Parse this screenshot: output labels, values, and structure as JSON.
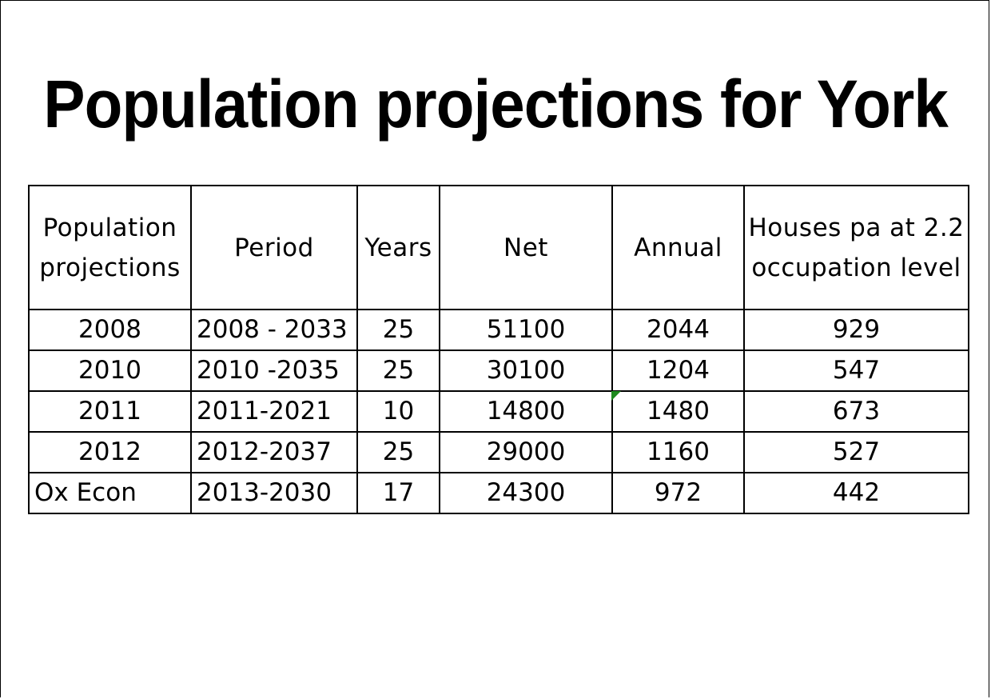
{
  "title": "Population projections for York",
  "table": {
    "headers": [
      [
        "Population",
        "projections"
      ],
      [
        "Period"
      ],
      [
        "Years"
      ],
      [
        "Net"
      ],
      [
        "Annual"
      ],
      [
        "Houses pa at 2.2",
        "occupation level"
      ]
    ],
    "rows": [
      [
        "2008",
        "2008 - 2033",
        "25",
        "51100",
        "2044",
        "929"
      ],
      [
        "2010",
        "2010 -2035",
        "25",
        "30100",
        "1204",
        "547"
      ],
      [
        "2011",
        "2011-2021",
        "10",
        "14800",
        "1480",
        "673"
      ],
      [
        "2012",
        "2012-2037",
        "25",
        "29000",
        "1160",
        "527"
      ],
      [
        "Ox Econ",
        "2013-2030",
        "17",
        "24300",
        "972",
        "442"
      ]
    ]
  },
  "colors": {
    "comment_marker": "#1e8a1e"
  }
}
